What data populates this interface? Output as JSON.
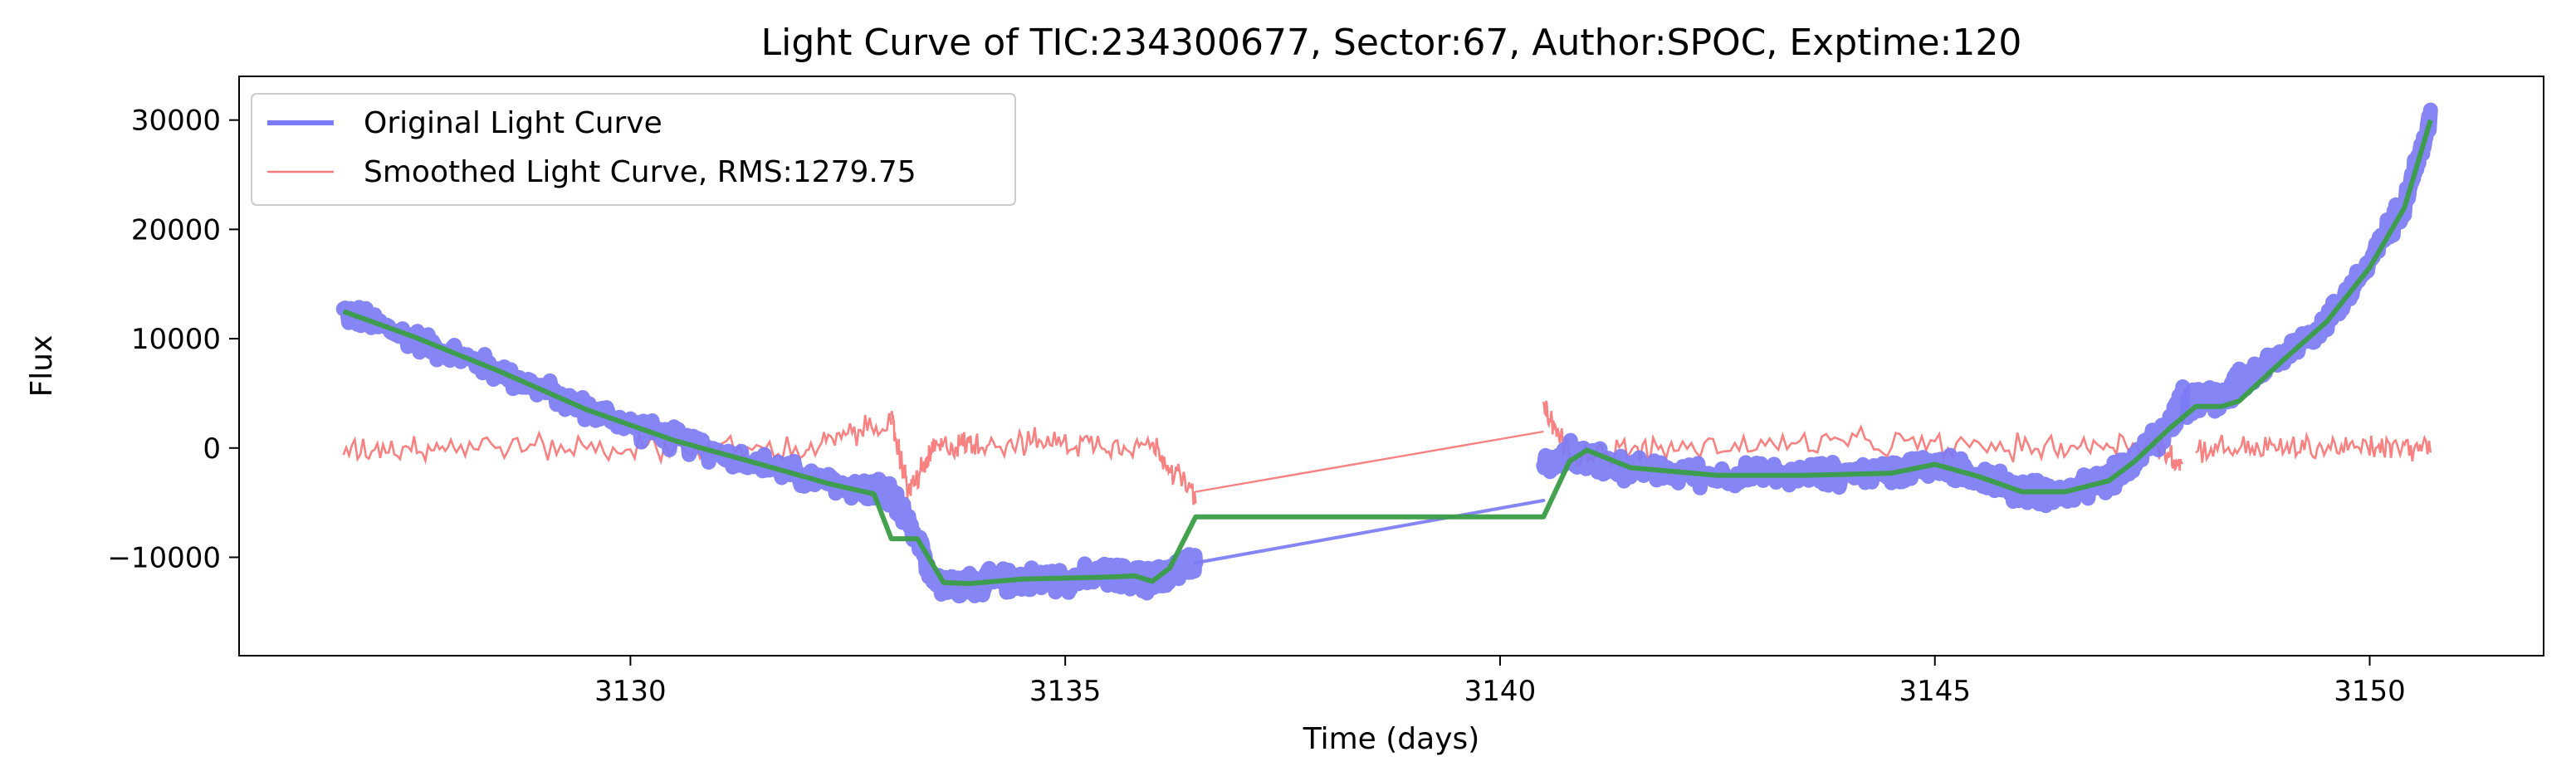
{
  "chart_data": {
    "type": "line",
    "title": "Light Curve of TIC:234300677, Sector:67, Author:SPOC, Exptime:120",
    "xlabel": "Time (days)",
    "ylabel": "Flux",
    "xlim": [
      3125.5,
      3152.0
    ],
    "ylim": [
      -19000,
      34000
    ],
    "xticks": [
      3130,
      3135,
      3140,
      3145,
      3150
    ],
    "xtick_labels": [
      "3130",
      "3135",
      "3140",
      "3145",
      "3150"
    ],
    "yticks": [
      -10000,
      0,
      10000,
      20000,
      30000
    ],
    "ytick_labels": [
      "−10000",
      "0",
      "10000",
      "20000",
      "30000"
    ],
    "grid": false,
    "legend_position": "top-left",
    "noise_band": {
      "original": 1000,
      "smoothed": 1100
    },
    "series": [
      {
        "name": "Original Light Curve",
        "color": "#7b7bf5",
        "style": "thick-line",
        "segments": [
          {
            "x": [
              3126.7,
              3127.5,
              3128.5,
              3129.5,
              3130.5,
              3131.5,
              3132.3,
              3132.9,
              3133.1,
              3133.5,
              3133.8,
              3134.0,
              3134.5,
              3135.0,
              3135.5,
              3135.8,
              3136.0,
              3136.2,
              3136.5
            ],
            "y": [
              12500,
              10000,
              7000,
              3500,
              800,
              -1500,
              -3300,
              -4000,
              -5500,
              -12000,
              -12600,
              -12400,
              -12000,
              -12000,
              -11700,
              -11800,
              -12200,
              -11500,
              -10500
            ]
          },
          {
            "x": [
              3136.5,
              3140.5
            ],
            "y": [
              -10500,
              -4800
            ]
          },
          {
            "x": [
              3140.5,
              3140.8,
              3141.0,
              3141.5,
              3142.5,
              3143.5,
              3144.5,
              3145.0,
              3145.5,
              3146.0,
              3146.5,
              3147.0,
              3147.3,
              3147.7,
              3147.85
            ],
            "y": [
              -2000,
              -500,
              -1000,
              -2000,
              -2500,
              -2500,
              -2200,
              -1500,
              -2500,
              -4000,
              -4200,
              -3000,
              -1000,
              2000,
              4500
            ]
          },
          {
            "x": [
              3147.9,
              3148.3,
              3148.5,
              3149.0,
              3149.5,
              3150.0,
              3150.4,
              3150.7
            ],
            "y": [
              4000,
              4500,
              6000,
              8500,
              11500,
              17000,
              22500,
              30000
            ]
          }
        ]
      },
      {
        "name": "Smoothed Light Curve, RMS:1279.75",
        "color": "#f87a7a",
        "style": "thin-line",
        "segments": [
          {
            "x": [
              3126.7,
              3128.0,
              3130.0,
              3132.0,
              3133.0
            ],
            "y": [
              0,
              200,
              0,
              -200,
              2500
            ]
          },
          {
            "x": [
              3133.0,
              3133.2,
              3133.5,
              3134.0,
              3135.0,
              3136.0,
              3136.5
            ],
            "y": [
              2500,
              -4000,
              0,
              500,
              500,
              300,
              -4500
            ]
          },
          {
            "x": [
              3136.5,
              3140.5
            ],
            "y": [
              -4000,
              1500
            ]
          },
          {
            "x": [
              3140.5,
              3140.8,
              3142.0,
              3144.0,
              3146.0,
              3147.5,
              3147.85
            ],
            "y": [
              3500,
              -500,
              0,
              500,
              0,
              500,
              -1500
            ]
          },
          {
            "x": [
              3148.0,
              3149.0,
              3150.0,
              3150.7
            ],
            "y": [
              0,
              0,
              0,
              0
            ]
          }
        ]
      },
      {
        "name": "",
        "color": "#3a9d44",
        "style": "trend",
        "segments": [
          {
            "x": [
              3126.7,
              3127.5,
              3128.5,
              3129.5,
              3130.5,
              3131.5,
              3132.3,
              3132.8,
              3133.0,
              3133.3,
              3133.6,
              3133.9,
              3134.5,
              3135.0,
              3135.5,
              3135.8,
              3136.0,
              3136.2,
              3136.5,
              3140.5,
              3140.8,
              3141.0,
              3141.5,
              3142.5,
              3143.5,
              3144.5,
              3145.0,
              3145.5,
              3146.0,
              3146.5,
              3147.0,
              3147.3,
              3147.7,
              3148.0,
              3148.3,
              3148.5,
              3149.0,
              3149.5,
              3150.0,
              3150.4,
              3150.7
            ],
            "y": [
              12500,
              10200,
              7000,
              3500,
              700,
              -1500,
              -3300,
              -4200,
              -8300,
              -8300,
              -12300,
              -12400,
              -12000,
              -11900,
              -11800,
              -11700,
              -12200,
              -11000,
              -6300,
              -6300,
              -1200,
              -200,
              -1800,
              -2500,
              -2500,
              -2300,
              -1500,
              -2600,
              -4000,
              -4000,
              -3000,
              -1200,
              1800,
              3800,
              3800,
              4300,
              8000,
              11500,
              16500,
              22000,
              30000
            ]
          }
        ]
      }
    ]
  }
}
